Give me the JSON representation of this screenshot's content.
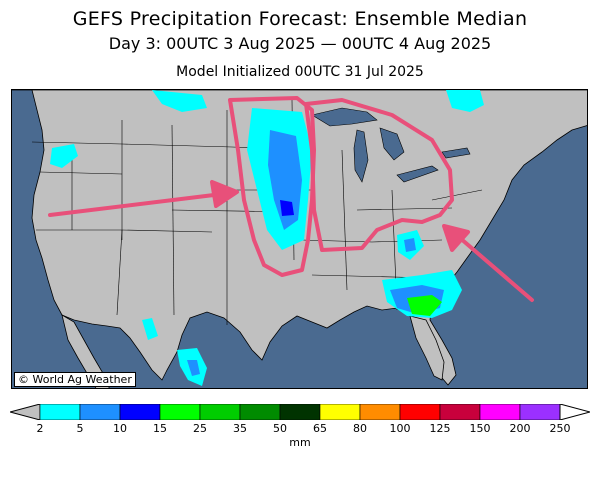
{
  "title": "GEFS Precipitation Forecast: Ensemble Median",
  "subtitle": "Day 3: 00UTC 3 Aug 2025 — 00UTC 4 Aug 2025",
  "init_line": "Model Initialized 00UTC 31 Jul 2025",
  "credit": "© World Ag Weather",
  "legend": {
    "unit": "mm",
    "labels": [
      "2",
      "5",
      "10",
      "15",
      "25",
      "35",
      "50",
      "65",
      "80",
      "100",
      "125",
      "150",
      "200",
      "250"
    ],
    "colors": [
      "#00ffff",
      "#1e90ff",
      "#0000ff",
      "#00ff00",
      "#00cd00",
      "#008b00",
      "#003300",
      "#ffff00",
      "#ff8c00",
      "#ff0000",
      "#c8003c",
      "#ff00ff",
      "#9b30ff"
    ]
  },
  "map_colors": {
    "ocean": "#4a6a90",
    "land": "#c0c0c0",
    "annotation": "#e8507a"
  }
}
